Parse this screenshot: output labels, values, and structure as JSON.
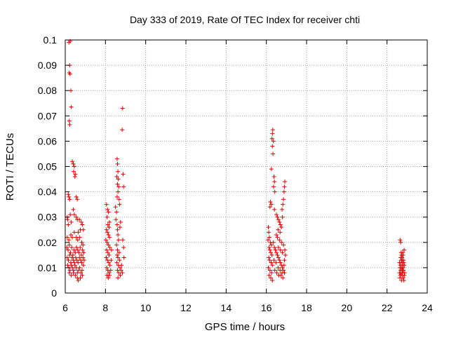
{
  "chart_data": {
    "type": "scatter",
    "title": "Day 333 of 2019, Rate Of TEC Index for receiver chti",
    "xlabel": "GPS time / hours",
    "ylabel": "ROTI / TECUs",
    "xlim": [
      6,
      24
    ],
    "ylim": [
      0,
      0.1
    ],
    "x_ticks": [
      6,
      8,
      10,
      12,
      14,
      16,
      18,
      20,
      22,
      24
    ],
    "x_tick_labels": [
      "6",
      "8",
      "10",
      "12",
      "14",
      "16",
      "18",
      "20",
      "22",
      "24"
    ],
    "y_ticks": [
      0,
      0.01,
      0.02,
      0.03,
      0.04,
      0.05,
      0.06,
      0.07,
      0.08,
      0.09,
      0.1
    ],
    "y_tick_labels": [
      "0",
      "0.01",
      "0.02",
      "0.03",
      "0.04",
      "0.05",
      "0.06",
      "0.07",
      "0.08",
      "0.09",
      "0.1"
    ],
    "grid": true,
    "marker": "+",
    "marker_color": "#e00000",
    "series": [
      {
        "name": "ROTI",
        "points": [
          [
            6.18,
            0.099
          ],
          [
            6.25,
            0.0995
          ],
          [
            6.22,
            0.09
          ],
          [
            6.2,
            0.087
          ],
          [
            6.24,
            0.0865
          ],
          [
            6.28,
            0.08
          ],
          [
            6.3,
            0.0735
          ],
          [
            6.2,
            0.068
          ],
          [
            6.22,
            0.0665
          ],
          [
            6.35,
            0.052
          ],
          [
            6.4,
            0.051
          ],
          [
            6.45,
            0.05
          ],
          [
            6.42,
            0.048
          ],
          [
            6.5,
            0.047
          ],
          [
            6.48,
            0.046
          ],
          [
            6.15,
            0.039
          ],
          [
            6.18,
            0.038
          ],
          [
            6.22,
            0.037
          ],
          [
            6.55,
            0.038
          ],
          [
            6.6,
            0.037
          ],
          [
            6.1,
            0.03
          ],
          [
            6.12,
            0.029
          ],
          [
            6.15,
            0.027
          ],
          [
            6.25,
            0.031
          ],
          [
            6.3,
            0.028
          ],
          [
            6.4,
            0.033
          ],
          [
            6.45,
            0.031
          ],
          [
            6.55,
            0.03
          ],
          [
            6.6,
            0.029
          ],
          [
            6.7,
            0.029
          ],
          [
            6.8,
            0.028
          ],
          [
            6.85,
            0.027
          ],
          [
            6.75,
            0.025
          ],
          [
            6.65,
            0.024
          ],
          [
            6.9,
            0.025
          ],
          [
            6.55,
            0.022
          ],
          [
            6.1,
            0.022
          ],
          [
            6.18,
            0.021
          ],
          [
            6.28,
            0.023
          ],
          [
            6.35,
            0.022
          ],
          [
            6.45,
            0.024
          ],
          [
            6.62,
            0.021
          ],
          [
            6.72,
            0.022
          ],
          [
            6.82,
            0.02
          ],
          [
            6.88,
            0.019
          ],
          [
            6.08,
            0.018
          ],
          [
            6.14,
            0.017
          ],
          [
            6.2,
            0.019
          ],
          [
            6.26,
            0.016
          ],
          [
            6.32,
            0.018
          ],
          [
            6.38,
            0.015
          ],
          [
            6.44,
            0.017
          ],
          [
            6.5,
            0.016
          ],
          [
            6.56,
            0.018
          ],
          [
            6.62,
            0.017
          ],
          [
            6.68,
            0.016
          ],
          [
            6.74,
            0.018
          ],
          [
            6.8,
            0.015
          ],
          [
            6.86,
            0.017
          ],
          [
            6.92,
            0.016
          ],
          [
            6.1,
            0.014
          ],
          [
            6.16,
            0.013
          ],
          [
            6.22,
            0.015
          ],
          [
            6.28,
            0.012
          ],
          [
            6.34,
            0.014
          ],
          [
            6.4,
            0.013
          ],
          [
            6.46,
            0.012
          ],
          [
            6.52,
            0.014
          ],
          [
            6.58,
            0.013
          ],
          [
            6.64,
            0.012
          ],
          [
            6.7,
            0.014
          ],
          [
            6.76,
            0.013
          ],
          [
            6.82,
            0.012
          ],
          [
            6.88,
            0.014
          ],
          [
            6.94,
            0.013
          ],
          [
            6.12,
            0.011
          ],
          [
            6.18,
            0.01
          ],
          [
            6.24,
            0.009
          ],
          [
            6.3,
            0.011
          ],
          [
            6.36,
            0.01
          ],
          [
            6.42,
            0.009
          ],
          [
            6.48,
            0.011
          ],
          [
            6.54,
            0.01
          ],
          [
            6.6,
            0.008
          ],
          [
            6.66,
            0.009
          ],
          [
            6.72,
            0.01
          ],
          [
            6.78,
            0.008
          ],
          [
            6.84,
            0.009
          ],
          [
            6.9,
            0.011
          ],
          [
            6.2,
            0.008
          ],
          [
            6.3,
            0.007
          ],
          [
            6.4,
            0.008
          ],
          [
            6.5,
            0.007
          ],
          [
            6.6,
            0.006
          ],
          [
            6.65,
            0.005
          ],
          [
            6.75,
            0.006
          ],
          [
            6.85,
            0.007
          ],
          [
            8.05,
            0.035
          ],
          [
            8.1,
            0.033
          ],
          [
            8.15,
            0.032
          ],
          [
            8.08,
            0.03
          ],
          [
            8.2,
            0.028
          ],
          [
            8.12,
            0.027
          ],
          [
            8.18,
            0.026
          ],
          [
            8.05,
            0.025
          ],
          [
            8.1,
            0.024
          ],
          [
            8.15,
            0.023
          ],
          [
            8.2,
            0.022
          ],
          [
            8.02,
            0.021
          ],
          [
            8.08,
            0.02
          ],
          [
            8.14,
            0.019
          ],
          [
            8.22,
            0.018
          ],
          [
            8.06,
            0.017
          ],
          [
            8.12,
            0.016
          ],
          [
            8.18,
            0.015
          ],
          [
            8.04,
            0.014
          ],
          [
            8.1,
            0.013
          ],
          [
            8.16,
            0.012
          ],
          [
            8.22,
            0.011
          ],
          [
            8.06,
            0.01
          ],
          [
            8.12,
            0.009
          ],
          [
            8.18,
            0.008
          ],
          [
            8.08,
            0.007
          ],
          [
            8.14,
            0.006
          ],
          [
            8.2,
            0.007
          ],
          [
            8.26,
            0.009
          ],
          [
            8.28,
            0.013
          ],
          [
            8.3,
            0.017
          ],
          [
            8.5,
            0.034
          ],
          [
            8.55,
            0.032
          ],
          [
            8.52,
            0.029
          ],
          [
            8.58,
            0.027
          ],
          [
            8.6,
            0.025
          ],
          [
            8.62,
            0.023
          ],
          [
            8.65,
            0.021
          ],
          [
            8.55,
            0.019
          ],
          [
            8.6,
            0.017
          ],
          [
            8.68,
            0.016
          ],
          [
            8.58,
            0.015
          ],
          [
            8.62,
            0.014
          ],
          [
            8.7,
            0.013
          ],
          [
            8.56,
            0.012
          ],
          [
            8.64,
            0.011
          ],
          [
            8.72,
            0.01
          ],
          [
            8.6,
            0.009
          ],
          [
            8.66,
            0.008
          ],
          [
            8.74,
            0.007
          ],
          [
            8.62,
            0.006
          ],
          [
            8.78,
            0.009
          ],
          [
            8.8,
            0.011
          ],
          [
            8.84,
            0.008
          ],
          [
            8.58,
            0.053
          ],
          [
            8.6,
            0.051
          ],
          [
            8.62,
            0.048
          ],
          [
            8.56,
            0.046
          ],
          [
            8.64,
            0.045
          ],
          [
            8.6,
            0.043
          ],
          [
            8.66,
            0.042
          ],
          [
            8.62,
            0.04
          ],
          [
            8.58,
            0.038
          ],
          [
            8.68,
            0.037
          ],
          [
            8.7,
            0.035
          ],
          [
            8.75,
            0.028
          ],
          [
            8.72,
            0.026
          ],
          [
            8.85,
            0.073
          ],
          [
            8.83,
            0.0645
          ],
          [
            8.88,
            0.047
          ],
          [
            8.9,
            0.042
          ],
          [
            8.86,
            0.021
          ],
          [
            8.9,
            0.018
          ],
          [
            8.92,
            0.014
          ],
          [
            16.1,
            0.026
          ],
          [
            16.12,
            0.024
          ],
          [
            16.15,
            0.022
          ],
          [
            16.08,
            0.021
          ],
          [
            16.2,
            0.02
          ],
          [
            16.25,
            0.019
          ],
          [
            16.14,
            0.018
          ],
          [
            16.18,
            0.017
          ],
          [
            16.22,
            0.016
          ],
          [
            16.28,
            0.015
          ],
          [
            16.12,
            0.014
          ],
          [
            16.16,
            0.013
          ],
          [
            16.24,
            0.012
          ],
          [
            16.3,
            0.011
          ],
          [
            16.1,
            0.01
          ],
          [
            16.18,
            0.009
          ],
          [
            16.26,
            0.008
          ],
          [
            16.14,
            0.007
          ],
          [
            16.22,
            0.006
          ],
          [
            16.3,
            0.005
          ],
          [
            16.35,
            0.02
          ],
          [
            16.4,
            0.018
          ],
          [
            16.45,
            0.017
          ],
          [
            16.5,
            0.016
          ],
          [
            16.55,
            0.015
          ],
          [
            16.6,
            0.014
          ],
          [
            16.65,
            0.013
          ],
          [
            16.7,
            0.012
          ],
          [
            16.75,
            0.011
          ],
          [
            16.8,
            0.01
          ],
          [
            16.85,
            0.009
          ],
          [
            16.9,
            0.008
          ],
          [
            16.38,
            0.013
          ],
          [
            16.48,
            0.012
          ],
          [
            16.58,
            0.01
          ],
          [
            16.68,
            0.009
          ],
          [
            16.78,
            0.008
          ],
          [
            16.88,
            0.011
          ],
          [
            16.42,
            0.009
          ],
          [
            16.52,
            0.008
          ],
          [
            16.62,
            0.007
          ],
          [
            16.72,
            0.007
          ],
          [
            16.82,
            0.006
          ],
          [
            16.55,
            0.022
          ],
          [
            16.65,
            0.021
          ],
          [
            16.75,
            0.02
          ],
          [
            16.85,
            0.019
          ],
          [
            16.92,
            0.017
          ],
          [
            16.95,
            0.015
          ],
          [
            16.9,
            0.013
          ],
          [
            16.6,
            0.018
          ],
          [
            16.7,
            0.017
          ],
          [
            16.8,
            0.016
          ],
          [
            16.2,
            0.036
          ],
          [
            16.25,
            0.035
          ],
          [
            16.18,
            0.034
          ],
          [
            16.4,
            0.033
          ],
          [
            16.5,
            0.031
          ],
          [
            16.55,
            0.03
          ],
          [
            16.6,
            0.029
          ],
          [
            16.65,
            0.028
          ],
          [
            16.7,
            0.027
          ],
          [
            16.75,
            0.026
          ],
          [
            16.58,
            0.025
          ],
          [
            16.68,
            0.024
          ],
          [
            16.5,
            0.023
          ],
          [
            16.8,
            0.03
          ],
          [
            16.78,
            0.033
          ],
          [
            16.85,
            0.037
          ],
          [
            16.88,
            0.04
          ],
          [
            16.9,
            0.042
          ],
          [
            16.92,
            0.044
          ],
          [
            16.82,
            0.035
          ],
          [
            16.3,
            0.063
          ],
          [
            16.32,
            0.0645
          ],
          [
            16.28,
            0.061
          ],
          [
            16.35,
            0.06
          ],
          [
            16.3,
            0.058
          ],
          [
            16.33,
            0.055
          ],
          [
            16.25,
            0.049
          ],
          [
            16.38,
            0.046
          ],
          [
            16.4,
            0.044
          ],
          [
            16.36,
            0.042
          ],
          [
            16.42,
            0.04
          ],
          [
            22.65,
            0.021
          ],
          [
            22.68,
            0.02
          ],
          [
            22.7,
            0.016
          ],
          [
            22.72,
            0.015
          ],
          [
            22.75,
            0.014
          ],
          [
            22.78,
            0.016
          ],
          [
            22.8,
            0.015
          ],
          [
            22.85,
            0.017
          ],
          [
            22.82,
            0.013
          ],
          [
            22.62,
            0.012
          ],
          [
            22.66,
            0.011
          ],
          [
            22.7,
            0.013
          ],
          [
            22.74,
            0.012
          ],
          [
            22.78,
            0.011
          ],
          [
            22.84,
            0.012
          ],
          [
            22.64,
            0.01
          ],
          [
            22.68,
            0.009
          ],
          [
            22.72,
            0.01
          ],
          [
            22.76,
            0.009
          ],
          [
            22.8,
            0.01
          ],
          [
            22.86,
            0.011
          ],
          [
            22.62,
            0.008
          ],
          [
            22.66,
            0.007
          ],
          [
            22.7,
            0.008
          ],
          [
            22.74,
            0.007
          ],
          [
            22.78,
            0.008
          ],
          [
            22.82,
            0.009
          ],
          [
            22.86,
            0.007
          ],
          [
            22.64,
            0.006
          ],
          [
            22.72,
            0.005
          ],
          [
            22.8,
            0.006
          ],
          [
            22.84,
            0.005
          ],
          [
            22.88,
            0.008
          ],
          [
            22.68,
            0.014
          ],
          [
            22.76,
            0.013
          ]
        ]
      }
    ]
  }
}
